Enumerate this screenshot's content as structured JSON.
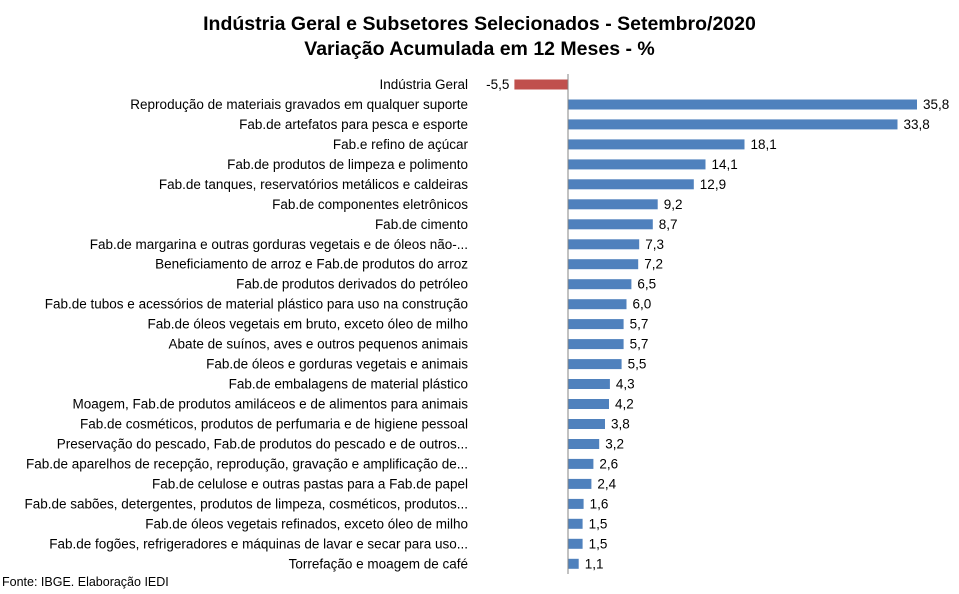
{
  "chart_data": {
    "type": "bar",
    "orientation": "horizontal",
    "title": "Indústria Geral e Subsetores Selecionados - Setembro/2020",
    "subtitle": "Variação Acumulada em 12 Meses - %",
    "categories": [
      "Indústria Geral",
      "Reprodução de materiais gravados em qualquer suporte",
      "Fab.de artefatos para pesca e esporte",
      "Fab.e refino de açúcar",
      "Fab.de produtos de limpeza e polimento",
      "Fab.de tanques, reservatórios metálicos e caldeiras",
      "Fab.de componentes eletrônicos",
      "Fab.de cimento",
      "Fab.de margarina e outras gorduras vegetais e de óleos não-...",
      "Beneficiamento de arroz e Fab.de produtos do arroz",
      "Fab.de produtos derivados do petróleo",
      "Fab.de tubos e acessórios de material plástico para uso na construção",
      "Fab.de óleos vegetais em bruto, exceto óleo de milho",
      "Abate de suínos, aves e outros pequenos animais",
      "Fab.de óleos e gorduras vegetais e animais",
      "Fab.de embalagens de material plástico",
      "Moagem, Fab.de produtos amiláceos e de alimentos para animais",
      "Fab.de cosméticos, produtos de perfumaria e de higiene pessoal",
      "Preservação do pescado, Fab.de produtos do pescado e de outros...",
      "Fab.de aparelhos de recepção, reprodução, gravação e amplificação de...",
      "Fab.de celulose e outras pastas para a Fab.de papel",
      "Fab.de sabões, detergentes, produtos de limpeza, cosméticos, produtos...",
      "Fab.de óleos vegetais refinados, exceto óleo de milho",
      "Fab.de fogões, refrigeradores e máquinas de lavar e secar para uso...",
      "Torrefação e moagem de café"
    ],
    "values": [
      -5.5,
      35.8,
      33.8,
      18.1,
      14.1,
      12.9,
      9.2,
      8.7,
      7.3,
      7.2,
      6.5,
      6.0,
      5.7,
      5.7,
      5.5,
      4.3,
      4.2,
      3.8,
      3.2,
      2.6,
      2.4,
      1.6,
      1.5,
      1.5,
      1.1
    ],
    "value_labels": [
      "-5,5",
      "35,8",
      "33,8",
      "18,1",
      "14,1",
      "12,9",
      "9,2",
      "8,7",
      "7,3",
      "7,2",
      "6,5",
      "6,0",
      "5,7",
      "5,7",
      "5,5",
      "4,3",
      "4,2",
      "3,8",
      "3,2",
      "2,6",
      "2,4",
      "1,6",
      "1,5",
      "1,5",
      "1,1"
    ],
    "colors": {
      "negative": "#c0504d",
      "positive": "#4f81bd",
      "axis": "#868686"
    },
    "xlim": [
      -5.5,
      36
    ],
    "grid": false,
    "legend": "none",
    "source": "Fonte: IBGE. Elaboração IEDI"
  }
}
